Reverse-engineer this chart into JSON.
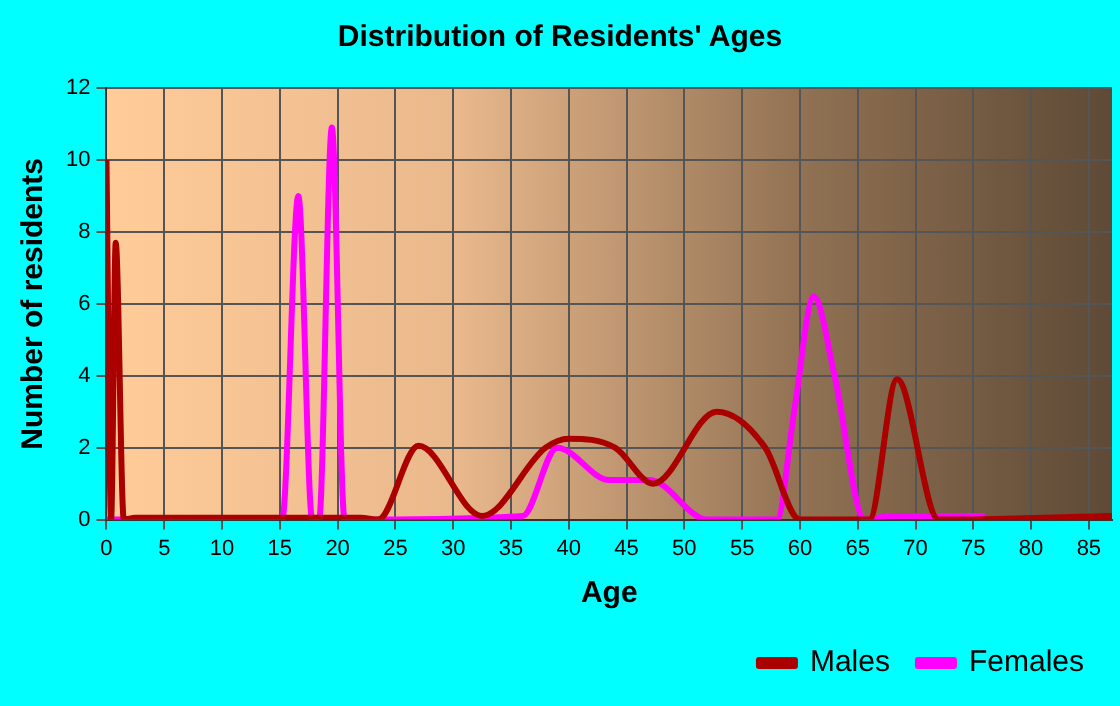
{
  "chart_data": {
    "type": "line",
    "title": "Distribution of Residents' Ages",
    "xlabel": "Age",
    "ylabel": "Number of residents",
    "xlim": [
      0,
      87
    ],
    "xticks": [
      0,
      5,
      10,
      15,
      20,
      25,
      30,
      35,
      40,
      45,
      50,
      55,
      60,
      65,
      70,
      75,
      80,
      85
    ],
    "ylim": [
      0,
      12
    ],
    "yticks": [
      0,
      2,
      4,
      6,
      8,
      10,
      12
    ],
    "grid": true,
    "legend": "bottom right",
    "marker": "none",
    "line_style": "solid",
    "series": [
      {
        "name": "Males",
        "color": "#aa0000",
        "x": [
          0,
          0.4,
          0.8,
          1.5,
          2.5,
          22,
          23.5,
          27,
          32.5,
          38,
          40,
          44,
          47.3,
          52.8,
          57,
          60,
          65,
          66,
          68.4,
          72,
          87
        ],
        "values": [
          10,
          0,
          7.7,
          0,
          0.05,
          0.05,
          0,
          2.05,
          0.1,
          2,
          2.25,
          2,
          1,
          3,
          2,
          0,
          0,
          0,
          3.9,
          0,
          0.1
        ]
      },
      {
        "name": "Females",
        "color": "#ff00ff",
        "x": [
          0,
          15.2,
          16.6,
          17.8,
          18.4,
          19.5,
          20.6,
          36,
          39,
          43.5,
          47,
          52,
          58,
          59.5,
          61.2,
          63,
          65.6,
          68,
          76
        ],
        "values": [
          0,
          0,
          9,
          0,
          0,
          10.9,
          0,
          0.1,
          2,
          1.1,
          1.1,
          0,
          0,
          3,
          6.2,
          4,
          0,
          0.1,
          0.1
        ]
      }
    ]
  }
}
